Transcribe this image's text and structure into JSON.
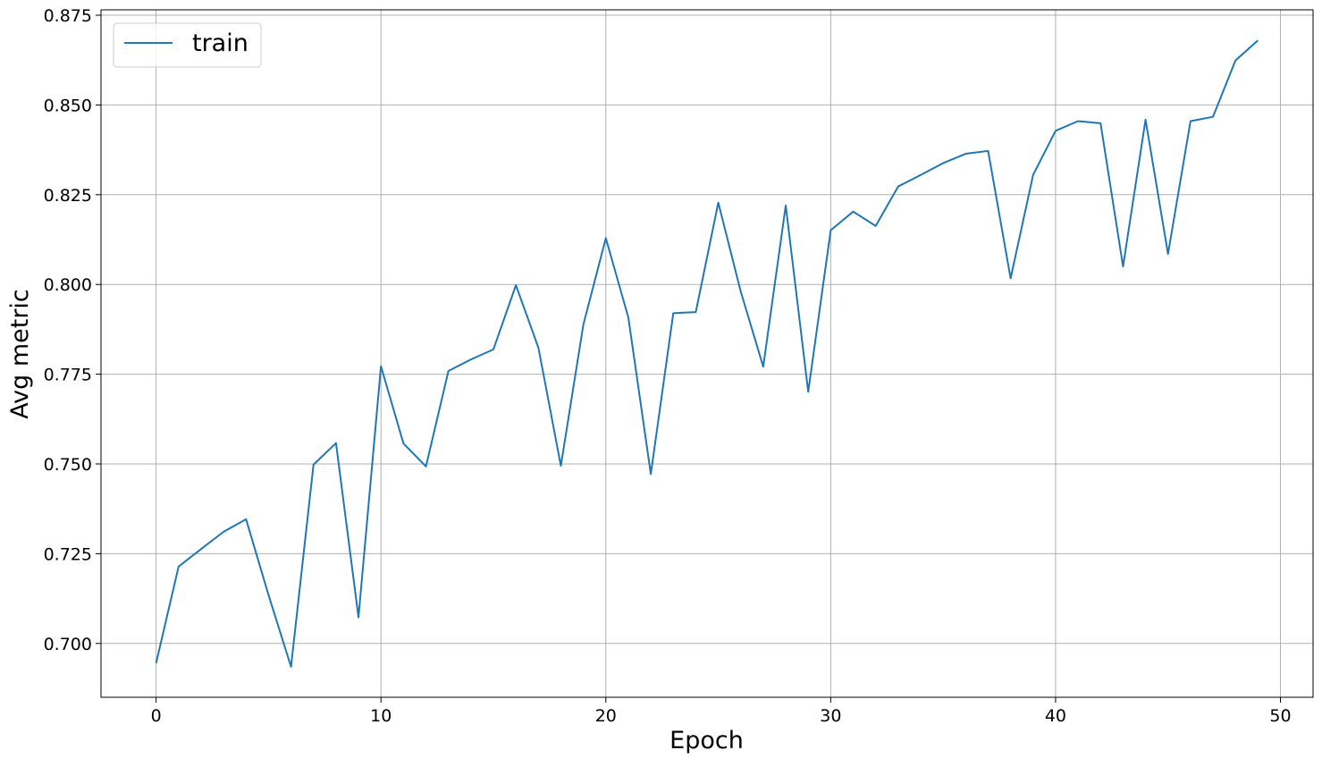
{
  "chart_data": {
    "type": "line",
    "title": "",
    "xlabel": "Epoch",
    "ylabel": "Avg metric",
    "xlim": [
      -2.45,
      51.45
    ],
    "ylim": [
      0.685,
      0.8765
    ],
    "xticks": [
      0,
      10,
      20,
      30,
      40,
      50
    ],
    "yticks": [
      0.7,
      0.725,
      0.75,
      0.775,
      0.8,
      0.825,
      0.85,
      0.875
    ],
    "xtick_labels": [
      "0",
      "10",
      "20",
      "30",
      "40",
      "50"
    ],
    "ytick_labels": [
      "0.700",
      "0.725",
      "0.750",
      "0.775",
      "0.800",
      "0.825",
      "0.850",
      "0.875"
    ],
    "grid": true,
    "legend_position": "top-left",
    "series": [
      {
        "name": "train",
        "color": "#1f77b4",
        "x": [
          0,
          1,
          2,
          3,
          4,
          5,
          6,
          7,
          8,
          9,
          10,
          11,
          12,
          13,
          14,
          15,
          16,
          17,
          18,
          19,
          20,
          21,
          22,
          23,
          24,
          25,
          26,
          27,
          28,
          29,
          30,
          31,
          32,
          33,
          34,
          35,
          36,
          37,
          38,
          39,
          40,
          41,
          42,
          43,
          44,
          45,
          46,
          47,
          48,
          49
        ],
        "y": [
          0.6945,
          0.7214,
          0.7263,
          0.7311,
          0.7346,
          0.7135,
          0.6935,
          0.7498,
          0.7558,
          0.7073,
          0.7772,
          0.7557,
          0.7493,
          0.7759,
          0.7791,
          0.7819,
          0.7998,
          0.7824,
          0.7495,
          0.7888,
          0.8129,
          0.7908,
          0.7472,
          0.792,
          0.7923,
          0.8228,
          0.798,
          0.7771,
          0.822,
          0.7701,
          0.8151,
          0.8203,
          0.8163,
          0.8273,
          0.8305,
          0.8338,
          0.8364,
          0.8372,
          0.8017,
          0.8305,
          0.8428,
          0.8455,
          0.8449,
          0.805,
          0.8459,
          0.8085,
          0.8455,
          0.8467,
          0.8624,
          0.868
        ]
      }
    ]
  }
}
